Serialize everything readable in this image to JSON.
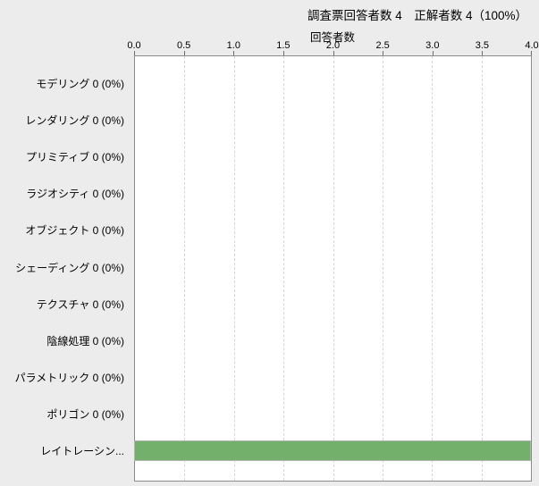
{
  "header": {
    "title": "調査票回答者数 4　正解者数 4（100%）"
  },
  "chart_data": {
    "type": "bar",
    "orientation": "horizontal",
    "title": "調査票回答者数 4　正解者数 4（100%）",
    "xlabel": "回答者数",
    "ylabel": "",
    "x_ticks": [
      "0.0",
      "0.5",
      "1.0",
      "1.5",
      "2.0",
      "2.5",
      "3.0",
      "3.5",
      "4.0"
    ],
    "xlim": [
      0,
      4
    ],
    "grid": "vertical-dashed",
    "legend": "none",
    "categories": [
      "モデリング",
      "レンダリング",
      "プリミティブ",
      "ラジオシティ",
      "オブジェクト",
      "シェーディング",
      "テクスチャ",
      "陰線処理",
      "パラメトリック",
      "ポリゴン",
      "レイトレーシン..."
    ],
    "display_labels": [
      "モデリング 0 (0%)",
      "レンダリング 0 (0%)",
      "プリミティブ 0 (0%)",
      "ラジオシティ 0 (0%)",
      "オブジェクト 0 (0%)",
      "シェーディング 0 (0%)",
      "テクスチャ 0 (0%)",
      "陰線処理 0 (0%)",
      "パラメトリック 0 (0%)",
      "ポリゴン 0 (0%)",
      "レイトレーシン..."
    ],
    "values": [
      0,
      0,
      0,
      0,
      0,
      0,
      0,
      0,
      0,
      0,
      4
    ],
    "bar_color": "#72b06c",
    "colors": {
      "page_background": "#ececec",
      "plot_background": "#ffffff",
      "plot_border": "#8c8c8c",
      "gridline": "#d6d6d6",
      "bar_border": "#b3b3b3",
      "text": "#000000"
    }
  }
}
